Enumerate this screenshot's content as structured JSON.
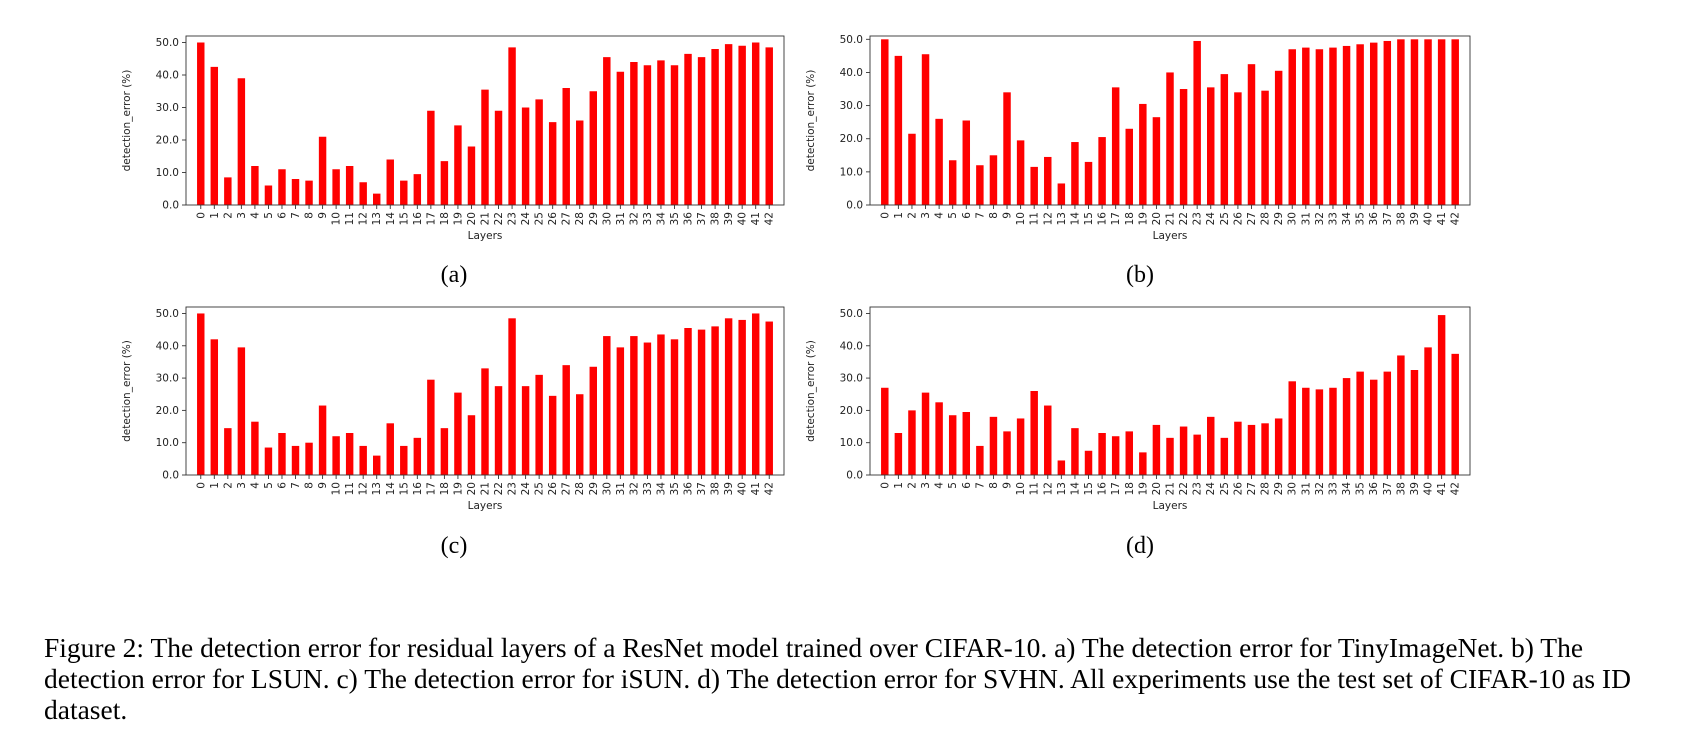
{
  "caption": "Figure 2: The detection error for residual layers of a ResNet model trained over CIFAR-10. a) The detection error for TinyImageNet. b) The detection error for LSUN. c) The detection error for iSUN. d) The detection error for SVHN. All experiments use the test set of CIFAR-10 as ID dataset.",
  "colors": {
    "bar": "#ff0000"
  },
  "chart_data": [
    {
      "type": "bar",
      "panel_label": "(a)",
      "xlabel": "Layers",
      "ylabel": "detection_error (%)",
      "ylim": [
        0,
        52
      ],
      "yticks": [
        "0.0",
        "10.0",
        "20.0",
        "30.0",
        "40.0",
        "50.0"
      ],
      "categories": [
        "0",
        "1",
        "2",
        "3",
        "4",
        "5",
        "6",
        "7",
        "8",
        "9",
        "10",
        "11",
        "12",
        "13",
        "14",
        "15",
        "16",
        "17",
        "18",
        "19",
        "20",
        "21",
        "22",
        "23",
        "24",
        "25",
        "26",
        "27",
        "28",
        "29",
        "30",
        "31",
        "32",
        "33",
        "34",
        "35",
        "36",
        "37",
        "38",
        "39",
        "40",
        "41",
        "42"
      ],
      "values": [
        50.0,
        42.5,
        8.5,
        39.0,
        12.0,
        6.0,
        11.0,
        8.0,
        7.5,
        21.0,
        11.0,
        12.0,
        7.0,
        3.5,
        14.0,
        7.5,
        9.5,
        29.0,
        13.5,
        24.5,
        18.0,
        35.5,
        29.0,
        48.5,
        30.0,
        32.5,
        25.5,
        36.0,
        26.0,
        35.0,
        45.5,
        41.0,
        44.0,
        43.0,
        44.5,
        43.0,
        46.5,
        45.5,
        48.0,
        49.5,
        49.0,
        50.0,
        48.5
      ]
    },
    {
      "type": "bar",
      "panel_label": "(b)",
      "xlabel": "Layers",
      "ylabel": "detection_error (%)",
      "ylim": [
        0,
        51
      ],
      "yticks": [
        "0.0",
        "10.0",
        "20.0",
        "30.0",
        "40.0",
        "50.0"
      ],
      "categories": [
        "0",
        "1",
        "2",
        "3",
        "4",
        "5",
        "6",
        "7",
        "8",
        "9",
        "10",
        "11",
        "12",
        "13",
        "14",
        "15",
        "16",
        "17",
        "18",
        "19",
        "20",
        "21",
        "22",
        "23",
        "24",
        "25",
        "26",
        "27",
        "28",
        "29",
        "30",
        "31",
        "32",
        "33",
        "34",
        "35",
        "36",
        "37",
        "38",
        "39",
        "40",
        "41",
        "42"
      ],
      "values": [
        50.0,
        45.0,
        21.5,
        45.5,
        26.0,
        13.5,
        25.5,
        12.0,
        15.0,
        34.0,
        19.5,
        11.5,
        14.5,
        6.5,
        19.0,
        13.0,
        20.5,
        35.5,
        23.0,
        30.5,
        26.5,
        40.0,
        35.0,
        49.5,
        35.5,
        39.5,
        34.0,
        42.5,
        34.5,
        40.5,
        47.0,
        47.5,
        47.0,
        47.5,
        48.0,
        48.5,
        49.0,
        49.5,
        50.0,
        50.0,
        50.0,
        50.0,
        50.0
      ]
    },
    {
      "type": "bar",
      "panel_label": "(c)",
      "xlabel": "Layers",
      "ylabel": "detection_error (%)",
      "ylim": [
        0,
        52
      ],
      "yticks": [
        "0.0",
        "10.0",
        "20.0",
        "30.0",
        "40.0",
        "50.0"
      ],
      "categories": [
        "0",
        "1",
        "2",
        "3",
        "4",
        "5",
        "6",
        "7",
        "8",
        "9",
        "10",
        "11",
        "12",
        "13",
        "14",
        "15",
        "16",
        "17",
        "18",
        "19",
        "20",
        "21",
        "22",
        "23",
        "24",
        "25",
        "26",
        "27",
        "28",
        "29",
        "30",
        "31",
        "32",
        "33",
        "34",
        "35",
        "36",
        "37",
        "38",
        "39",
        "40",
        "41",
        "42"
      ],
      "values": [
        50.0,
        42.0,
        14.5,
        39.5,
        16.5,
        8.5,
        13.0,
        9.0,
        10.0,
        21.5,
        12.0,
        13.0,
        9.0,
        6.0,
        16.0,
        9.0,
        11.5,
        29.5,
        14.5,
        25.5,
        18.5,
        33.0,
        27.5,
        48.5,
        27.5,
        31.0,
        24.5,
        34.0,
        25.0,
        33.5,
        43.0,
        39.5,
        43.0,
        41.0,
        43.5,
        42.0,
        45.5,
        45.0,
        46.0,
        48.5,
        48.0,
        50.0,
        47.5
      ]
    },
    {
      "type": "bar",
      "panel_label": "(d)",
      "xlabel": "Layers",
      "ylabel": "detection_error (%)",
      "ylim": [
        0,
        52
      ],
      "yticks": [
        "0.0",
        "10.0",
        "20.0",
        "30.0",
        "40.0",
        "50.0"
      ],
      "categories": [
        "0",
        "1",
        "2",
        "3",
        "4",
        "5",
        "6",
        "7",
        "8",
        "9",
        "10",
        "11",
        "12",
        "13",
        "14",
        "15",
        "16",
        "17",
        "18",
        "19",
        "20",
        "21",
        "22",
        "23",
        "24",
        "25",
        "26",
        "27",
        "28",
        "29",
        "30",
        "31",
        "32",
        "33",
        "34",
        "35",
        "36",
        "37",
        "38",
        "39",
        "40",
        "41",
        "42"
      ],
      "values": [
        27.0,
        13.0,
        20.0,
        25.5,
        22.5,
        18.5,
        19.5,
        9.0,
        18.0,
        13.5,
        17.5,
        26.0,
        21.5,
        4.5,
        14.5,
        7.5,
        13.0,
        12.0,
        13.5,
        7.0,
        15.5,
        11.5,
        15.0,
        12.5,
        18.0,
        11.5,
        16.5,
        15.5,
        16.0,
        17.5,
        29.0,
        27.0,
        26.5,
        27.0,
        30.0,
        32.0,
        29.5,
        32.0,
        37.0,
        32.5,
        39.5,
        49.5,
        37.5
      ]
    }
  ]
}
